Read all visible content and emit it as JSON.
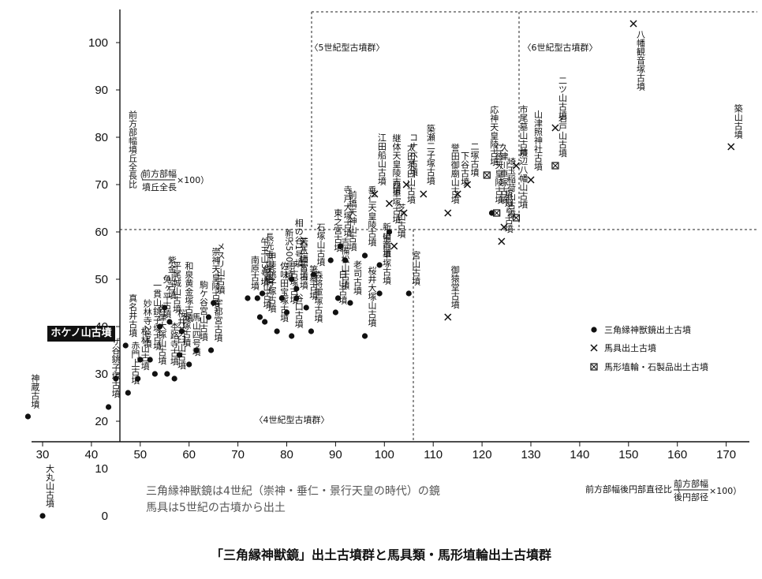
{
  "chart_data": {
    "type": "scatter",
    "title": "「三角縁神獣鏡」出土古墳群と馬具類・馬形埴輪出土古墳群",
    "xlabel": "前方部幅後円部直径比（前方部幅／後円部径×100）",
    "ylabel": "前方部幅墳丘全長比（前方部幅／墳丘全長×100）",
    "xlim": [
      23,
      173
    ],
    "ylim": [
      -10,
      103
    ],
    "x_ticks": [
      30,
      40,
      50,
      60,
      70,
      80,
      90,
      100,
      110,
      120,
      130,
      140,
      150,
      160,
      170
    ],
    "y_ticks": [
      0,
      10,
      20,
      30,
      40,
      50,
      60,
      70,
      80,
      90,
      100
    ],
    "legend": [
      {
        "marker": "dot",
        "label": "三角縁神獣鏡出土古墳"
      },
      {
        "marker": "cross",
        "label": "馬具出土古墳"
      },
      {
        "marker": "boxcross",
        "label": "馬形埴輪・石製品出土古墳"
      }
    ],
    "regions": [
      {
        "label": "〈5世紀型古墳群〉"
      },
      {
        "label": "〈6世紀型古墳群〉"
      },
      {
        "label": "〈4世紀型古墳群〉"
      }
    ],
    "points": [
      {
        "name": "神蔵古墳",
        "x": 27,
        "y": 21,
        "marker": "dot"
      },
      {
        "name": "大丸山古墳",
        "x": 30,
        "y": 0,
        "marker": "dot"
      },
      {
        "name": "ホケノ山古墳",
        "x": 45,
        "y": 29,
        "marker": "dot"
      },
      {
        "name": "ザ谷銚子塚古墳",
        "x": 43.5,
        "y": 23,
        "marker": "dot"
      },
      {
        "name": "赤門上古墳",
        "x": 47.5,
        "y": 26,
        "marker": "dot"
      },
      {
        "name": "真名井古墳",
        "x": 47,
        "y": 36,
        "marker": "dot"
      },
      {
        "name": "松林山古墳",
        "x": 49.5,
        "y": 29,
        "marker": "dot"
      },
      {
        "name": "妙林寺2号墳",
        "x": 50,
        "y": 33,
        "marker": "dot"
      },
      {
        "name": "一貫山銚子塚古墳",
        "x": 52,
        "y": 33,
        "marker": "dot"
      },
      {
        "name": "会津大塚山古墳",
        "x": 53,
        "y": 30,
        "marker": "dot"
      },
      {
        "name": "紫金山古墳",
        "x": 55,
        "y": 44,
        "marker": "dot"
      },
      {
        "name": "平尾城山古墳",
        "x": 56,
        "y": 41,
        "marker": "dot"
      },
      {
        "name": "免ヶ平古墳",
        "x": 54,
        "y": 40,
        "marker": "dot"
      },
      {
        "name": "杢路寺古墳",
        "x": 55.5,
        "y": 30,
        "marker": "dot"
      },
      {
        "name": "赤塚古墳",
        "x": 58,
        "y": 34,
        "marker": "dot"
      },
      {
        "name": "和泉黄金塚古墳",
        "x": 58.5,
        "y": 39,
        "marker": "dot"
      },
      {
        "name": "桜井茶臼山古墳",
        "x": 57,
        "y": 29,
        "marker": "dot"
      },
      {
        "name": "馬山四号墳",
        "x": 60,
        "y": 32,
        "marker": "dot"
      },
      {
        "name": "駒ケ谷宮山古墳",
        "x": 61.5,
        "y": 35,
        "marker": "dot"
      },
      {
        "name": "宇都宮古墳",
        "x": 64.5,
        "y": 35,
        "marker": "dot"
      },
      {
        "name": "メスリ山古墳",
        "x": 65,
        "y": 45,
        "marker": "dot"
      },
      {
        "name": "崇神天皇陵古墳",
        "x": 64,
        "y": 42,
        "marker": "dot"
      },
      {
        "name": "南原古墳",
        "x": 72,
        "y": 46,
        "marker": "dot"
      },
      {
        "name": "午王山3号墳",
        "x": 74,
        "y": 46,
        "marker": "dot"
      },
      {
        "name": "長光寺山古墳",
        "x": 75,
        "y": 47,
        "marker": "dot"
      },
      {
        "name": "紗見山古墳",
        "x": 74.5,
        "y": 42,
        "marker": "dot"
      },
      {
        "name": "甲斐銚子塚古墳",
        "x": 75.5,
        "y": 41,
        "marker": "dot"
      },
      {
        "name": "佐味田宝塚古墳",
        "x": 78,
        "y": 39,
        "marker": "dot"
      },
      {
        "name": "新沢500号墳",
        "x": 79,
        "y": 46,
        "marker": "dot"
      },
      {
        "name": "手古塚古墳",
        "x": 80,
        "y": 43,
        "marker": "dot"
      },
      {
        "name": "相の谷1号墳",
        "x": 81,
        "y": 50,
        "marker": "dot"
      },
      {
        "name": "若八幡宮古墳",
        "x": 82,
        "y": 46,
        "marker": "dot"
      },
      {
        "name": "谷口古墳",
        "x": 81,
        "y": 38,
        "marker": "dot"
      },
      {
        "name": "天王山古墳",
        "x": 82,
        "y": 48,
        "marker": "dot"
      },
      {
        "name": "箸墓古墳",
        "x": 84,
        "y": 44,
        "marker": "dot"
      },
      {
        "name": "森将軍塚古墳",
        "x": 85,
        "y": 39,
        "marker": "dot"
      },
      {
        "name": "石塚山古墳",
        "x": 85.5,
        "y": 51,
        "marker": "dot"
      },
      {
        "name": "東之宮古墳",
        "x": 89,
        "y": 54,
        "marker": "dot"
      },
      {
        "name": "白山古墳",
        "x": 90,
        "y": 43,
        "marker": "dot"
      },
      {
        "name": "吉備松山古墳",
        "x": 90.5,
        "y": 46,
        "marker": "dot"
      },
      {
        "name": "寺戸大塚古墳",
        "x": 91,
        "y": 57,
        "marker": "dot"
      },
      {
        "name": "前橋天神山古墳",
        "x": 92,
        "y": 54,
        "marker": "dot"
      },
      {
        "name": "老司古墳",
        "x": 93,
        "y": 45,
        "marker": "dot"
      },
      {
        "name": "垂仁天皇陵古墳",
        "x": 96,
        "y": 55,
        "marker": "dot"
      },
      {
        "name": "桜井大塚山古墳",
        "x": 96,
        "y": 38,
        "marker": "dot"
      },
      {
        "name": "備前車塚古墳",
        "x": 99,
        "y": 47,
        "marker": "dot"
      },
      {
        "name": "新山古墳",
        "x": 99,
        "y": 53,
        "marker": "dot"
      },
      {
        "name": "西車塚古墳",
        "x": 101,
        "y": 60,
        "marker": "dot"
      },
      {
        "name": "宮山古墳",
        "x": 105,
        "y": 47,
        "marker": "dot"
      },
      {
        "name": "仁徳天皇陵古墳",
        "x": 122,
        "y": 64,
        "marker": "dot"
      },
      {
        "name": "江田船山古墳",
        "x": 98,
        "y": 68,
        "marker": "cross"
      },
      {
        "name": "継体天皇陵古墳",
        "x": 101,
        "y": 66,
        "marker": "cross"
      },
      {
        "name": "太田茶臼山古墳",
        "x": 104,
        "y": 64,
        "marker": "cross"
      },
      {
        "name": "コナベ古墳",
        "x": 104.5,
        "y": 70,
        "marker": "cross"
      },
      {
        "name": "芝山古墳",
        "x": 102,
        "y": 57,
        "marker": "cross"
      },
      {
        "name": "築瀬二子塚古墳",
        "x": 108,
        "y": 68,
        "marker": "cross"
      },
      {
        "name": "誉田御廟山古墳",
        "x": 113,
        "y": 64,
        "marker": "cross"
      },
      {
        "name": "下谷古墳",
        "x": 115,
        "y": 68,
        "marker": "cross"
      },
      {
        "name": "二塚古墳",
        "x": 117,
        "y": 70,
        "marker": "cross"
      },
      {
        "name": "御猿堂古墳",
        "x": 113,
        "y": 42,
        "marker": "cross"
      },
      {
        "name": "塚廻り古墳",
        "x": 124,
        "y": 58,
        "marker": "cross"
      },
      {
        "name": "埼玉稲荷山古墳",
        "x": 124.5,
        "y": 61,
        "marker": "cross"
      },
      {
        "name": "市尾墓山古墳",
        "x": 127,
        "y": 74,
        "marker": "cross"
      },
      {
        "name": "山津照神社古墳",
        "x": 130,
        "y": 71,
        "marker": "cross"
      },
      {
        "name": "二ツ山古墳",
        "x": 135,
        "y": 82,
        "marker": "cross"
      },
      {
        "name": "八幡観音塚古墳",
        "x": 151,
        "y": 104,
        "marker": "cross"
      },
      {
        "name": "築山古墳",
        "x": 171,
        "y": 78,
        "marker": "cross"
      },
      {
        "name": "応神天皇陵古墳",
        "x": 121,
        "y": 72,
        "marker": "boxcross"
      },
      {
        "name": "久津川車塚古墳",
        "x": 123,
        "y": 64,
        "marker": "boxcross"
      },
      {
        "name": "井辺八幡山古墳",
        "x": 127,
        "y": 63,
        "marker": "boxcross"
      },
      {
        "name": "岩戸山古墳",
        "x": 135,
        "y": 74,
        "marker": "boxcross"
      }
    ]
  },
  "labels": {
    "hokenoyama": "ホケノ山古墳",
    "y_unit_line1": "前方部幅",
    "y_unit_line2": "墳丘全長",
    "x_unit_prefix": "前方部幅後円部直径比",
    "x_unit_top": "前方部幅",
    "x_unit_bottom": "後円部径",
    "ratio_suffix": "×100",
    "y_title_vertical": "前方部幅墳丘全長比",
    "note_line1": "三角縁神獣鏡は4世紀（崇神・垂仁・景行天皇の時代）の鏡",
    "note_line2": "馬具は5世紀の古墳から出土"
  }
}
